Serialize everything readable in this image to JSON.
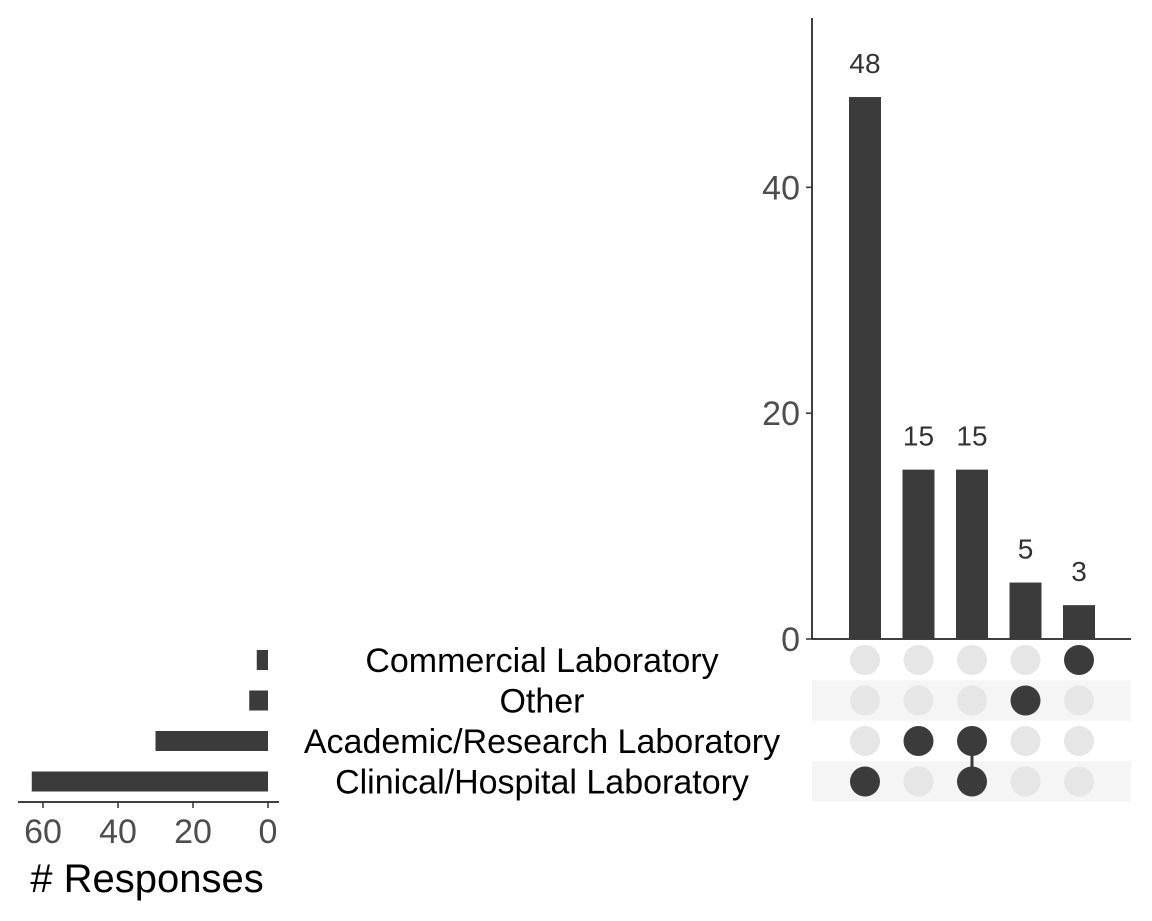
{
  "chart_data": {
    "type": "bar",
    "subtype": "upset",
    "colors": {
      "bar": "#3b3b3b",
      "dot_active": "#3b3b3b",
      "dot_inactive": "#e6e6e6",
      "stripe": "#f5f5f5"
    },
    "sets": [
      {
        "name": "Commercial Laboratory",
        "size": 3
      },
      {
        "name": "Other",
        "size": 5
      },
      {
        "name": "Academic/Research Laboratory",
        "size": 30
      },
      {
        "name": "Clinical/Hospital Laboratory",
        "size": 63
      }
    ],
    "intersections": [
      {
        "sets": [
          "Clinical/Hospital Laboratory"
        ],
        "value": 48,
        "label": "48"
      },
      {
        "sets": [
          "Academic/Research Laboratory"
        ],
        "value": 15,
        "label": "15"
      },
      {
        "sets": [
          "Academic/Research Laboratory",
          "Clinical/Hospital Laboratory"
        ],
        "value": 15,
        "label": "15"
      },
      {
        "sets": [
          "Other"
        ],
        "value": 5,
        "label": "5"
      },
      {
        "sets": [
          "Commercial Laboratory"
        ],
        "value": 3,
        "label": "3"
      }
    ],
    "intersection_axis": {
      "ylim": [
        0,
        55
      ],
      "ticks": [
        "0",
        "20",
        "40"
      ],
      "tick_values": [
        0,
        20,
        40
      ],
      "ylabel": ""
    },
    "set_size_axis": {
      "xlim": [
        0,
        66
      ],
      "ticks": [
        "60",
        "40",
        "20",
        "0"
      ],
      "tick_values": [
        60,
        40,
        20,
        0
      ],
      "xlabel": "# Responses"
    }
  }
}
